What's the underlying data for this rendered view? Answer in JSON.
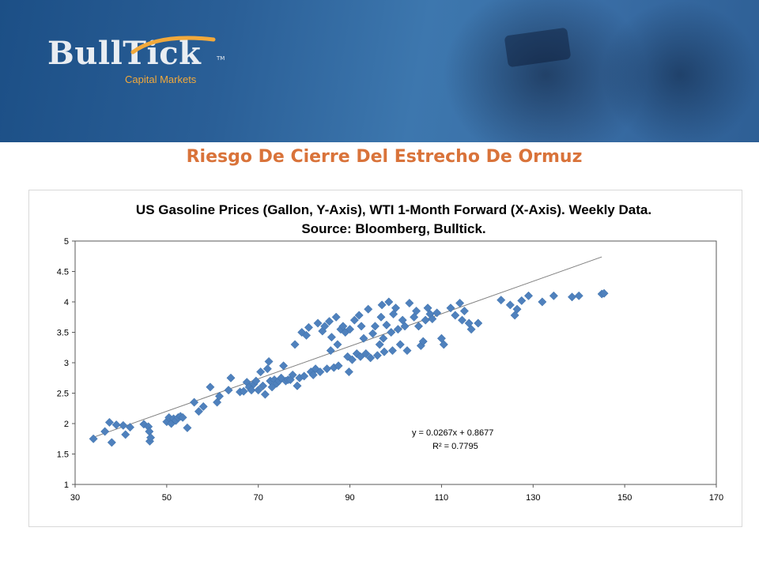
{
  "brand": {
    "name": "BullTick",
    "tm": "TM",
    "subtitle": "Capital Markets"
  },
  "page": {
    "title": "Riesgo De Cierre Del Estrecho De Ormuz"
  },
  "colors": {
    "title": "#d9733a",
    "marker": "#4f81bd",
    "trendline": "#7f7f7f",
    "banner": "#2a5f97",
    "logo_accent": "#f2a93b"
  },
  "chart_data": {
    "type": "scatter",
    "title": "US Gasoline Prices (Gallon, Y-Axis), WTI 1-Month Forward (X-Axis). Weekly Data.",
    "subtitle": "Source: Bloomberg, Bulltick.",
    "xlabel": "",
    "ylabel": "",
    "xlim": [
      30,
      170
    ],
    "ylim": [
      1,
      5
    ],
    "x_ticks": [
      "30",
      "50",
      "70",
      "90",
      "110",
      "130",
      "150",
      "170"
    ],
    "y_ticks": [
      "1",
      "1.5",
      "2",
      "2.5",
      "3",
      "3.5",
      "4",
      "4.5",
      "5"
    ],
    "grid": false,
    "legend": "none",
    "trendline": {
      "slope": 0.0267,
      "intercept": 0.8677,
      "x_range": [
        34,
        145
      ]
    },
    "annotations": [
      "y = 0.0267x + 0.8677",
      "R² = 0.7795"
    ],
    "points": [
      [
        34,
        1.75
      ],
      [
        36.5,
        1.87
      ],
      [
        37.5,
        2.02
      ],
      [
        38,
        1.69
      ],
      [
        39,
        1.98
      ],
      [
        40.5,
        1.97
      ],
      [
        41,
        1.82
      ],
      [
        42,
        1.94
      ],
      [
        45,
        1.99
      ],
      [
        46,
        1.95
      ],
      [
        46.2,
        1.87
      ],
      [
        46.3,
        1.71
      ],
      [
        46.5,
        1.77
      ],
      [
        50,
        2.03
      ],
      [
        50.5,
        2.1
      ],
      [
        51,
        2.0
      ],
      [
        51.5,
        2.08
      ],
      [
        52,
        2.05
      ],
      [
        52.5,
        2.1
      ],
      [
        53,
        2.12
      ],
      [
        53.5,
        2.1
      ],
      [
        54.5,
        1.93
      ],
      [
        56,
        2.35
      ],
      [
        57,
        2.2
      ],
      [
        58,
        2.28
      ],
      [
        59.5,
        2.6
      ],
      [
        61,
        2.35
      ],
      [
        61.5,
        2.45
      ],
      [
        63.5,
        2.55
      ],
      [
        64,
        2.75
      ],
      [
        66,
        2.52
      ],
      [
        66.8,
        2.53
      ],
      [
        67.5,
        2.68
      ],
      [
        68,
        2.6
      ],
      [
        68.5,
        2.55
      ],
      [
        69,
        2.65
      ],
      [
        69.5,
        2.7
      ],
      [
        70,
        2.55
      ],
      [
        70.5,
        2.85
      ],
      [
        71,
        2.62
      ],
      [
        71.5,
        2.48
      ],
      [
        72,
        2.9
      ],
      [
        72.3,
        3.02
      ],
      [
        72.6,
        2.7
      ],
      [
        73,
        2.6
      ],
      [
        73.5,
        2.72
      ],
      [
        74,
        2.66
      ],
      [
        74.5,
        2.7
      ],
      [
        75,
        2.75
      ],
      [
        75.5,
        2.95
      ],
      [
        76,
        2.7
      ],
      [
        76.5,
        2.72
      ],
      [
        77,
        2.72
      ],
      [
        77.5,
        2.8
      ],
      [
        78,
        3.3
      ],
      [
        78.5,
        2.62
      ],
      [
        79,
        2.75
      ],
      [
        79.5,
        3.5
      ],
      [
        80,
        2.78
      ],
      [
        80.5,
        3.45
      ],
      [
        81,
        3.58
      ],
      [
        81.5,
        2.85
      ],
      [
        82,
        2.8
      ],
      [
        82.5,
        2.9
      ],
      [
        83,
        3.65
      ],
      [
        83.5,
        2.85
      ],
      [
        84,
        3.52
      ],
      [
        84.5,
        3.6
      ],
      [
        85,
        2.9
      ],
      [
        85.5,
        3.68
      ],
      [
        85.8,
        3.2
      ],
      [
        86,
        3.42
      ],
      [
        86.5,
        2.92
      ],
      [
        87,
        3.75
      ],
      [
        87.3,
        3.3
      ],
      [
        87.5,
        2.95
      ],
      [
        88,
        3.55
      ],
      [
        88.5,
        3.6
      ],
      [
        89,
        3.5
      ],
      [
        89.5,
        3.1
      ],
      [
        89.8,
        2.85
      ],
      [
        90,
        3.55
      ],
      [
        90.5,
        3.05
      ],
      [
        91,
        3.7
      ],
      [
        91.5,
        3.15
      ],
      [
        92,
        3.78
      ],
      [
        92.3,
        3.1
      ],
      [
        92.5,
        3.6
      ],
      [
        93,
        3.4
      ],
      [
        93.5,
        3.15
      ],
      [
        94,
        3.88
      ],
      [
        94.5,
        3.08
      ],
      [
        95,
        3.48
      ],
      [
        95.5,
        3.6
      ],
      [
        96,
        3.12
      ],
      [
        96.5,
        3.3
      ],
      [
        96.8,
        3.75
      ],
      [
        97,
        3.95
      ],
      [
        97.3,
        3.4
      ],
      [
        97.5,
        3.18
      ],
      [
        98,
        3.62
      ],
      [
        98.5,
        4.0
      ],
      [
        99,
        3.5
      ],
      [
        99.3,
        3.2
      ],
      [
        99.5,
        3.8
      ],
      [
        100,
        3.9
      ],
      [
        100.5,
        3.55
      ],
      [
        101,
        3.3
      ],
      [
        101.5,
        3.7
      ],
      [
        102,
        3.6
      ],
      [
        102.5,
        3.2
      ],
      [
        103,
        3.98
      ],
      [
        104,
        3.75
      ],
      [
        104.5,
        3.85
      ],
      [
        105,
        3.6
      ],
      [
        105.5,
        3.28
      ],
      [
        106,
        3.35
      ],
      [
        106.5,
        3.7
      ],
      [
        107,
        3.9
      ],
      [
        107.5,
        3.8
      ],
      [
        108,
        3.72
      ],
      [
        109,
        3.82
      ],
      [
        110,
        3.4
      ],
      [
        110.5,
        3.3
      ],
      [
        112,
        3.9
      ],
      [
        113,
        3.78
      ],
      [
        114,
        3.98
      ],
      [
        114.5,
        3.7
      ],
      [
        115,
        3.85
      ],
      [
        116,
        3.65
      ],
      [
        116.5,
        3.55
      ],
      [
        118,
        3.65
      ],
      [
        123,
        4.03
      ],
      [
        125,
        3.95
      ],
      [
        126,
        3.78
      ],
      [
        126.5,
        3.88
      ],
      [
        127.5,
        4.02
      ],
      [
        129,
        4.1
      ],
      [
        132,
        4.0
      ],
      [
        134.5,
        4.1
      ],
      [
        138.5,
        4.08
      ],
      [
        140,
        4.1
      ],
      [
        145,
        4.13
      ],
      [
        145.5,
        4.14
      ]
    ]
  }
}
